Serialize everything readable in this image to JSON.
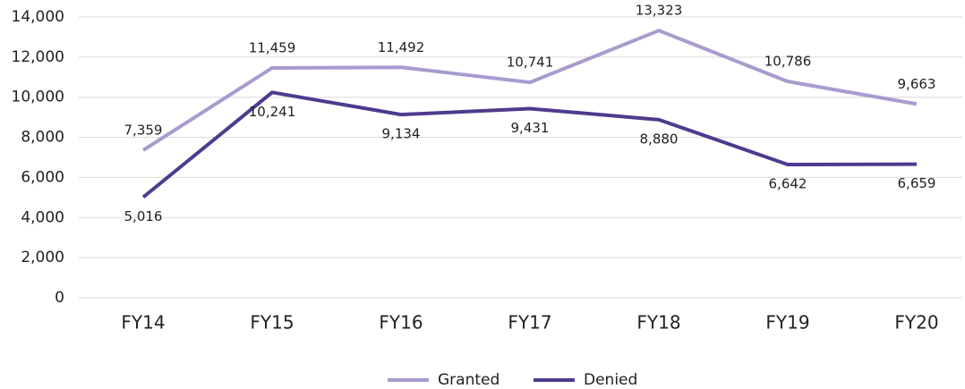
{
  "chart_data": {
    "type": "line",
    "categories": [
      "FY14",
      "FY15",
      "FY16",
      "FY17",
      "FY18",
      "FY19",
      "FY20"
    ],
    "series": [
      {
        "name": "Granted",
        "color": "#a99bcf",
        "values": [
          7359,
          11459,
          11492,
          10741,
          13323,
          10786,
          9663
        ],
        "value_labels": [
          "7,359",
          "11,459",
          "11,492",
          "10,741",
          "13,323",
          "10,786",
          "9,663"
        ]
      },
      {
        "name": "Denied",
        "color": "#4e3a8e",
        "values": [
          5016,
          10241,
          9134,
          9431,
          8880,
          6642,
          6659
        ],
        "value_labels": [
          "5,016",
          "10,241",
          "9,134",
          "9,431",
          "8,880",
          "6,642",
          "6,659"
        ]
      }
    ],
    "ylim": [
      0,
      14000
    ],
    "yticks": [
      0,
      {
        "value": 2000,
        "label": "2,000"
      },
      {
        "value": 4000,
        "label": "4,000"
      },
      {
        "value": 6000,
        "label": "6,000"
      },
      {
        "value": 8000,
        "label": "8,000"
      },
      {
        "value": 10000,
        "label": "10,000"
      },
      {
        "value": 12000,
        "label": "12,000"
      },
      {
        "value": 14000,
        "label": "14,000"
      }
    ],
    "grid": true,
    "legend": "bottom"
  }
}
